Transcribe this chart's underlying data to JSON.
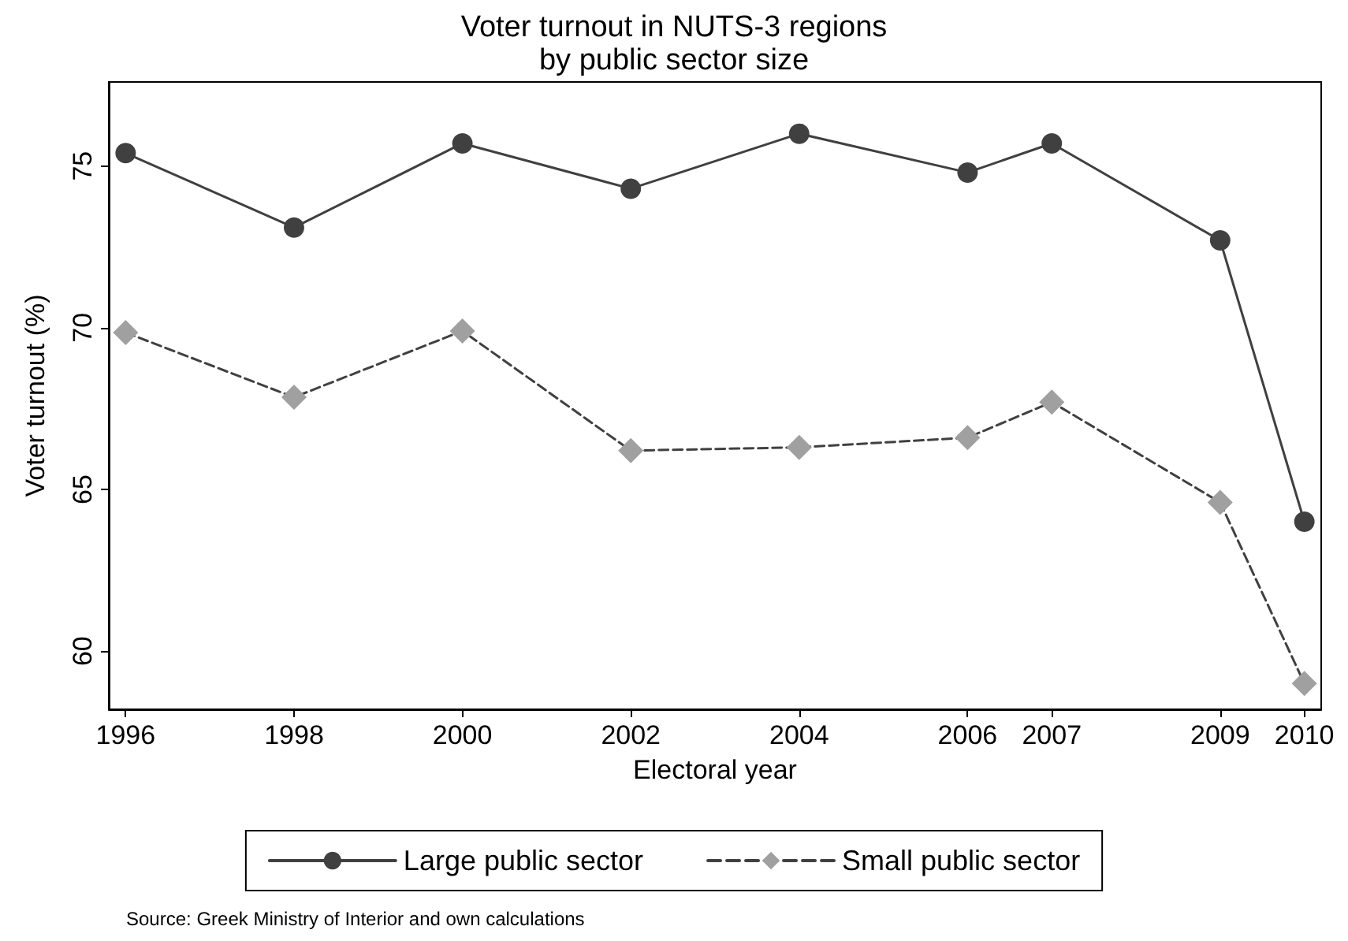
{
  "chart_data": {
    "type": "line",
    "title": "Voter turnout in NUTS-3 regions\nby public sector size",
    "xlabel": "Electoral year",
    "ylabel": "Voter turnout (%)",
    "x": [
      1996,
      1998,
      2000,
      2002,
      2004,
      2006,
      2007,
      2009,
      2010
    ],
    "series": [
      {
        "name": "Large public sector",
        "color": "#404040",
        "marker": "circle",
        "line_style": "solid",
        "values": [
          75.4,
          73.1,
          75.7,
          74.3,
          76.0,
          74.8,
          75.7,
          72.7,
          64.0
        ]
      },
      {
        "name": "Small public sector",
        "color": "#a0a0a0",
        "marker": "diamond",
        "line_style": "dashed",
        "values": [
          69.85,
          67.85,
          69.9,
          66.2,
          66.3,
          66.6,
          67.7,
          64.6,
          59.0
        ]
      }
    ],
    "xlim": [
      1995.8,
      2010.2
    ],
    "xticks": [
      1996,
      1998,
      2000,
      2002,
      2004,
      2006,
      2007,
      2009,
      2010
    ],
    "ylim": [
      58.2,
      77.6
    ],
    "yticks": [
      60,
      65,
      70,
      75
    ],
    "grid": false,
    "legend": "bottom",
    "annotations": [
      "Source: Greek Ministry of Interior and own calculations"
    ]
  }
}
